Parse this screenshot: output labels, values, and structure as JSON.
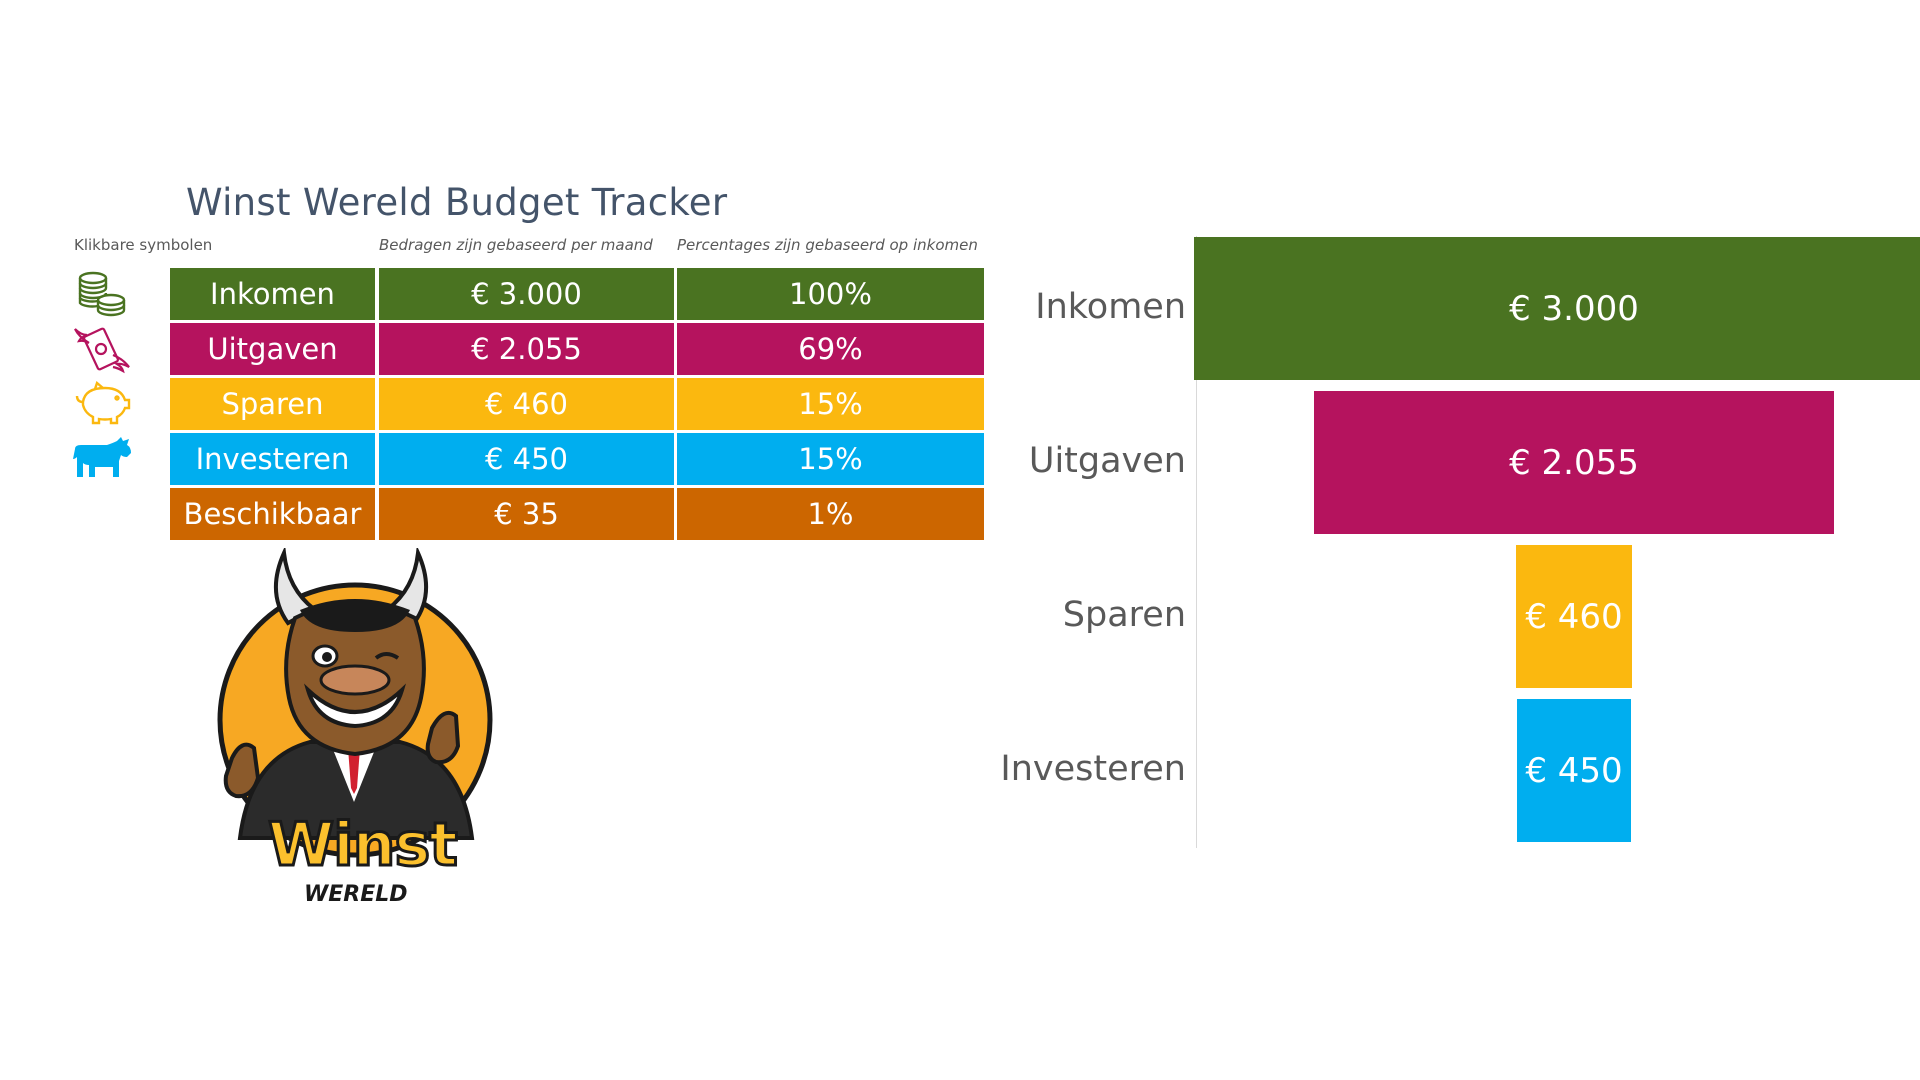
{
  "title": "Winst Wereld Budget Tracker",
  "notes": {
    "icons": "Klikbare symbolen",
    "amounts": "Bedragen zijn gebaseerd per maand",
    "percentages": "Percentages zijn gebaseerd op inkomen"
  },
  "rows": [
    {
      "label": "Inkomen",
      "amount": "€ 3.000",
      "percent": "100%",
      "color": "#4a7321",
      "icon": "coins-stack-icon",
      "icon_color": "#4a7321"
    },
    {
      "label": "Uitgaven",
      "amount": "€ 2.055",
      "percent": "69%",
      "color": "#b5135e",
      "icon": "flying-money-icon",
      "icon_color": "#b5135e"
    },
    {
      "label": "Sparen",
      "amount": "€ 460",
      "percent": "15%",
      "color": "#fbb80f",
      "icon": "piggy-bank-icon",
      "icon_color": "#fbb80f"
    },
    {
      "label": "Investeren",
      "amount": "€ 450",
      "percent": "15%",
      "color": "#00aeef",
      "icon": "bull-icon",
      "icon_color": "#00aeef"
    },
    {
      "label": "Beschikbaar",
      "amount": "€ 35",
      "percent": "1%",
      "color": "#cc6600",
      "icon": "",
      "icon_color": ""
    }
  ],
  "logo": {
    "word": "Winst",
    "sub": "WERELD",
    "mascot": "bull-mascot"
  },
  "chart_data": {
    "type": "funnel",
    "categories": [
      "Inkomen",
      "Uitgaven",
      "Sparen",
      "Investeren"
    ],
    "values": [
      3000,
      2055,
      460,
      450
    ],
    "labels": [
      "€ 3.000",
      "€ 2.055",
      "€ 460",
      "€ 450"
    ],
    "colors": [
      "#4a7321",
      "#b5135e",
      "#fbb80f",
      "#00aeef"
    ],
    "orientation": "centered-horizontal",
    "grid": false
  }
}
